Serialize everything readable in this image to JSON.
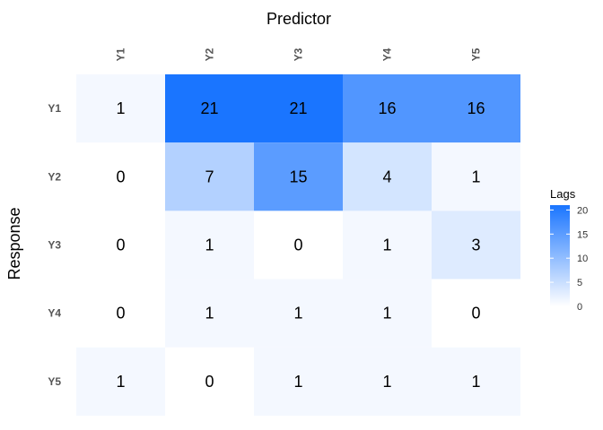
{
  "chart_data": {
    "type": "heatmap",
    "title": "Predictor",
    "xlabel": "Predictor",
    "ylabel": "Response",
    "x_categories": [
      "Y1",
      "Y2",
      "Y3",
      "Y4",
      "Y5"
    ],
    "y_categories": [
      "Y1",
      "Y2",
      "Y3",
      "Y4",
      "Y5"
    ],
    "values": [
      [
        1,
        21,
        21,
        16,
        16
      ],
      [
        0,
        7,
        15,
        4,
        1
      ],
      [
        0,
        1,
        0,
        1,
        3
      ],
      [
        0,
        1,
        1,
        1,
        0
      ],
      [
        1,
        0,
        1,
        1,
        1
      ]
    ],
    "legend": {
      "title": "Lags",
      "ticks": [
        "0",
        "5",
        "10",
        "15",
        "20"
      ],
      "range": [
        0,
        21
      ],
      "placement": "right"
    },
    "colors": {
      "low": "#ffffff",
      "high": "#1a75ff"
    },
    "grid": false,
    "x_axis_position": "top"
  }
}
